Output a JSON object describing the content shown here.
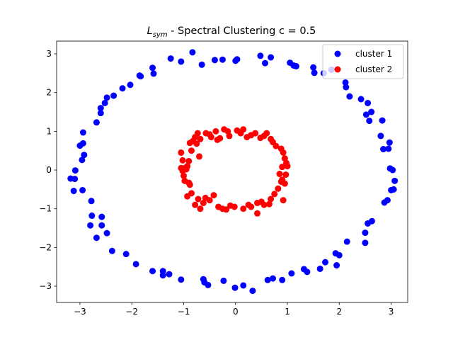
{
  "chart_data": {
    "type": "scatter",
    "title": {
      "symbol_main": "L",
      "symbol_sub": "sym",
      "rest": " - Spectral Clustering c = 0.5"
    },
    "xlabel": "",
    "ylabel": "",
    "xlim": [
      -3.45,
      3.32
    ],
    "ylim": [
      -3.42,
      3.33
    ],
    "xticks": [
      -3,
      -2,
      -1,
      0,
      1,
      2,
      3
    ],
    "yticks": [
      -3,
      -2,
      -1,
      0,
      1,
      2,
      3
    ],
    "grid": false,
    "legend_position": "top-right",
    "series": [
      {
        "name": "cluster 1",
        "color": "#0000ff",
        "points": [
          [
            -3.18,
            -0.22
          ],
          [
            -3.1,
            -0.23
          ],
          [
            -3.12,
            -0.54
          ],
          [
            -3.09,
            -0.01
          ],
          [
            -3.0,
            0.63
          ],
          [
            -2.94,
            0.69
          ],
          [
            -2.96,
            0.26
          ],
          [
            -2.92,
            0.39
          ],
          [
            -2.95,
            -0.52
          ],
          [
            -2.94,
            0.97
          ],
          [
            -2.78,
            -0.8
          ],
          [
            -2.77,
            -1.18
          ],
          [
            -2.8,
            -1.43
          ],
          [
            -2.68,
            1.23
          ],
          [
            -2.68,
            -1.75
          ],
          [
            -2.58,
            -1.21
          ],
          [
            -2.58,
            -1.43
          ],
          [
            -2.6,
            1.47
          ],
          [
            -2.6,
            1.6
          ],
          [
            -2.52,
            1.73
          ],
          [
            -2.48,
            -1.63
          ],
          [
            -2.48,
            1.87
          ],
          [
            -2.38,
            -2.09
          ],
          [
            -2.35,
            1.92
          ],
          [
            -2.18,
            2.11
          ],
          [
            -2.11,
            -2.17
          ],
          [
            -2.03,
            2.2
          ],
          [
            -1.92,
            -2.43
          ],
          [
            -1.85,
            2.44
          ],
          [
            -1.83,
            2.42
          ],
          [
            -1.6,
            2.64
          ],
          [
            -1.58,
            2.49
          ],
          [
            -1.6,
            -2.61
          ],
          [
            -1.4,
            -2.61
          ],
          [
            -1.4,
            -2.72
          ],
          [
            -1.28,
            -2.69
          ],
          [
            -1.25,
            2.88
          ],
          [
            -1.05,
            2.8
          ],
          [
            -1.05,
            -2.83
          ],
          [
            -0.83,
            3.04
          ],
          [
            -0.65,
            2.72
          ],
          [
            -0.62,
            -2.82
          ],
          [
            -0.6,
            -2.9
          ],
          [
            -0.53,
            -2.97
          ],
          [
            -0.4,
            2.84
          ],
          [
            -0.25,
            2.85
          ],
          [
            -0.23,
            -2.86
          ],
          [
            0.0,
            2.82
          ],
          [
            0.03,
            2.86
          ],
          [
            -0.01,
            -3.04
          ],
          [
            0.15,
            -2.98
          ],
          [
            0.33,
            -3.12
          ],
          [
            0.48,
            2.95
          ],
          [
            0.57,
            2.76
          ],
          [
            0.62,
            -2.84
          ],
          [
            0.68,
            2.91
          ],
          [
            0.72,
            -2.8
          ],
          [
            0.9,
            -2.84
          ],
          [
            1.05,
            2.77
          ],
          [
            1.08,
            -2.67
          ],
          [
            1.12,
            2.7
          ],
          [
            1.17,
            2.68
          ],
          [
            1.32,
            -2.56
          ],
          [
            1.38,
            -2.63
          ],
          [
            1.5,
            2.65
          ],
          [
            1.52,
            2.51
          ],
          [
            1.63,
            -2.55
          ],
          [
            1.73,
            -2.38
          ],
          [
            1.7,
            2.5
          ],
          [
            1.85,
            2.59
          ],
          [
            1.93,
            -2.15
          ],
          [
            1.95,
            -2.46
          ],
          [
            2.0,
            -2.2
          ],
          [
            2.13,
            2.14
          ],
          [
            2.12,
            2.26
          ],
          [
            2.15,
            -1.85
          ],
          [
            2.2,
            1.9
          ],
          [
            2.42,
            1.83
          ],
          [
            2.5,
            -1.62
          ],
          [
            2.5,
            -1.88
          ],
          [
            2.55,
            1.73
          ],
          [
            2.52,
            1.43
          ],
          [
            2.55,
            -1.38
          ],
          [
            2.58,
            1.27
          ],
          [
            2.63,
            -1.32
          ],
          [
            2.62,
            1.5
          ],
          [
            2.8,
            0.88
          ],
          [
            2.83,
            1.28
          ],
          [
            2.85,
            0.54
          ],
          [
            2.87,
            -0.84
          ],
          [
            2.93,
            -0.78
          ],
          [
            2.95,
            0.55
          ],
          [
            2.97,
            0.71
          ],
          [
            2.98,
            0.04
          ],
          [
            3.0,
            -0.52
          ],
          [
            3.03,
            0.0
          ],
          [
            3.05,
            -0.5
          ],
          [
            3.07,
            -0.28
          ]
        ]
      },
      {
        "name": "cluster 2",
        "color": "#ff0000",
        "points": [
          [
            -1.05,
            0.45
          ],
          [
            -1.02,
            0.25
          ],
          [
            -1.05,
            0.05
          ],
          [
            -1.0,
            -0.15
          ],
          [
            -0.98,
            -0.28
          ],
          [
            -0.93,
            0.1
          ],
          [
            -0.9,
            0.23
          ],
          [
            -0.9,
            -0.33
          ],
          [
            -0.88,
            -0.38
          ],
          [
            -0.85,
            0.5
          ],
          [
            -0.88,
            0.7
          ],
          [
            -0.82,
            0.75
          ],
          [
            -0.78,
            0.85
          ],
          [
            -0.75,
            0.68
          ],
          [
            -0.7,
            0.35
          ],
          [
            -0.73,
            0.95
          ],
          [
            -0.68,
            0.8
          ],
          [
            -0.57,
            0.95
          ],
          [
            -0.47,
            0.85
          ],
          [
            -0.38,
            1.0
          ],
          [
            -0.3,
            0.82
          ],
          [
            -0.22,
            1.05
          ],
          [
            -0.15,
            1.0
          ],
          [
            -0.12,
            0.88
          ],
          [
            0.03,
            1.02
          ],
          [
            0.1,
            0.95
          ],
          [
            0.15,
            1.05
          ],
          [
            0.22,
            0.85
          ],
          [
            0.3,
            0.9
          ],
          [
            0.38,
            0.95
          ],
          [
            0.48,
            0.83
          ],
          [
            0.55,
            0.88
          ],
          [
            0.6,
            0.95
          ],
          [
            0.68,
            0.8
          ],
          [
            0.72,
            0.72
          ],
          [
            0.78,
            0.62
          ],
          [
            0.88,
            0.55
          ],
          [
            0.92,
            0.45
          ],
          [
            0.95,
            0.3
          ],
          [
            0.98,
            0.18
          ],
          [
            0.9,
            0.08
          ],
          [
            0.85,
            -0.1
          ],
          [
            0.9,
            -0.25
          ],
          [
            0.95,
            -0.35
          ],
          [
            0.82,
            -0.48
          ],
          [
            0.75,
            -0.62
          ],
          [
            0.68,
            -0.75
          ],
          [
            0.92,
            -0.78
          ],
          [
            0.65,
            -0.88
          ],
          [
            0.55,
            -0.9
          ],
          [
            0.42,
            -0.85
          ],
          [
            0.3,
            -0.95
          ],
          [
            0.15,
            -1.0
          ],
          [
            -0.02,
            -0.95
          ],
          [
            -0.1,
            -0.92
          ],
          [
            -0.18,
            -1.02
          ],
          [
            -0.25,
            -1.0
          ],
          [
            -0.33,
            -0.95
          ],
          [
            -0.5,
            -0.78
          ],
          [
            -0.58,
            -0.72
          ],
          [
            -0.62,
            -0.85
          ],
          [
            -0.72,
            -0.75
          ],
          [
            -0.78,
            -0.9
          ],
          [
            -0.85,
            -0.6
          ],
          [
            -0.93,
            -0.68
          ],
          [
            -0.68,
            -1.0
          ],
          [
            -0.42,
            -0.65
          ],
          [
            0.25,
            -0.9
          ],
          [
            0.42,
            -1.12
          ],
          [
            0.5,
            -0.82
          ],
          [
            1.0,
            0.1
          ],
          [
            0.97,
            -0.12
          ],
          [
            -0.95,
            0.02
          ],
          [
            -1.02,
            -0.02
          ],
          [
            -0.98,
            0.05
          ],
          [
            0.88,
            -0.3
          ],
          [
            -0.5,
            0.92
          ],
          [
            -0.35,
            0.78
          ]
        ]
      }
    ]
  }
}
